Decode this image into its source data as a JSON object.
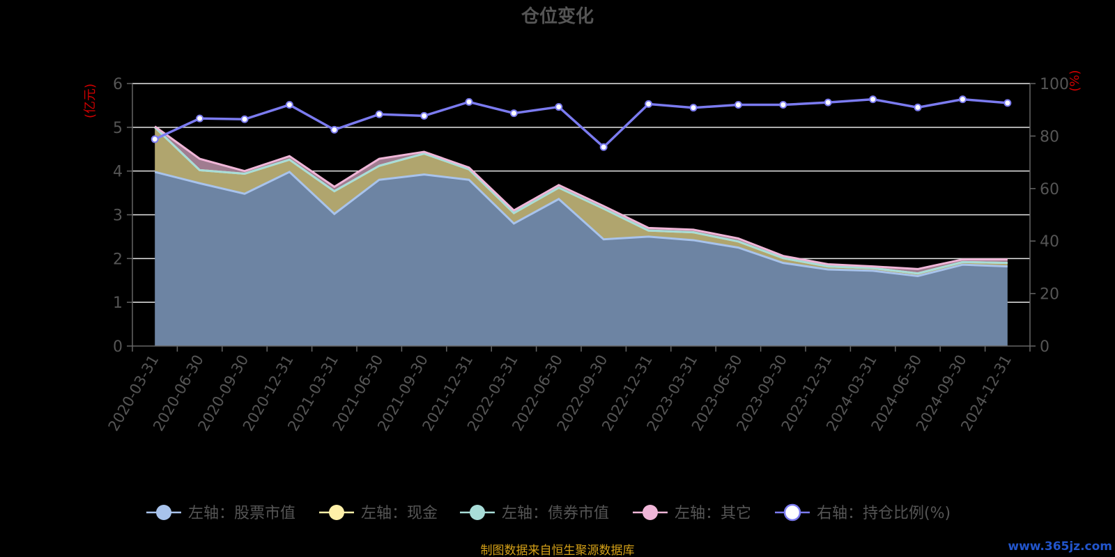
{
  "chart_data": {
    "type": "area",
    "title": "仓位变化",
    "left_axis_unit": "(亿元)",
    "right_axis_unit": "(%)",
    "x": [
      "2020-03-31",
      "2020-06-30",
      "2020-09-30",
      "2020-12-31",
      "2021-03-31",
      "2021-06-30",
      "2021-09-30",
      "2021-12-31",
      "2022-03-31",
      "2022-06-30",
      "2022-09-30",
      "2022-12-31",
      "2023-03-31",
      "2023-06-30",
      "2023-09-30",
      "2023-12-31",
      "2024-03-31",
      "2024-06-30",
      "2024-09-30",
      "2024-12-31"
    ],
    "ylim_left": [
      0,
      6
    ],
    "yticks_left": [
      "0",
      "1",
      "2",
      "3",
      "4",
      "5",
      "6"
    ],
    "ylim_right": [
      0,
      100
    ],
    "yticks_right": [
      "0",
      "20",
      "40",
      "60",
      "80",
      "100"
    ],
    "grid": true,
    "legend_position": "bottom",
    "series": [
      {
        "name": "左轴：股票市值",
        "axis": "left",
        "stack": true,
        "color": "#a8c3ec",
        "fill": "#6d84a3",
        "values": [
          3.98,
          3.72,
          3.48,
          3.98,
          3.02,
          3.8,
          3.92,
          3.8,
          2.8,
          3.36,
          2.44,
          2.5,
          2.42,
          2.25,
          1.9,
          1.75,
          1.72,
          1.6,
          1.86,
          1.82
        ]
      },
      {
        "name": "左轴：现金",
        "axis": "left",
        "stack": true,
        "color": "#fff0a8",
        "fill": "#b0a56e",
        "values": [
          1.02,
          0.3,
          0.46,
          0.28,
          0.52,
          0.32,
          0.48,
          0.24,
          0.24,
          0.26,
          0.7,
          0.14,
          0.18,
          0.14,
          0.11,
          0.07,
          0.06,
          0.06,
          0.06,
          0.08
        ]
      },
      {
        "name": "左轴：债券市值",
        "axis": "left",
        "stack": true,
        "color": "#a8ddd8",
        "fill": "#8fb0ad",
        "values": [
          0,
          0,
          0,
          0,
          0,
          0,
          0,
          0,
          0,
          0,
          0,
          0,
          0,
          0,
          0,
          0,
          0,
          0,
          0,
          0
        ]
      },
      {
        "name": "左轴：其它",
        "axis": "left",
        "stack": true,
        "color": "#f0b6d8",
        "fill": "#a07c90",
        "values": [
          0.02,
          0.26,
          0.06,
          0.08,
          0.1,
          0.16,
          0.04,
          0.04,
          0.06,
          0.06,
          0.06,
          0.06,
          0.06,
          0.07,
          0.05,
          0.05,
          0.04,
          0.1,
          0.06,
          0.08
        ]
      },
      {
        "name": "右轴：持仓比例(%)",
        "axis": "right",
        "type": "line",
        "color": "#7b7bf0",
        "values": [
          78.8,
          86.7,
          86.4,
          91.9,
          82.4,
          88.3,
          87.7,
          93.0,
          88.7,
          91.1,
          75.8,
          92.2,
          90.8,
          91.9,
          91.9,
          92.8,
          94.0,
          90.9,
          94.0,
          92.6
        ]
      }
    ],
    "source_note": "制图数据来自恒生聚源数据库",
    "watermark": "www.365jz.com"
  }
}
